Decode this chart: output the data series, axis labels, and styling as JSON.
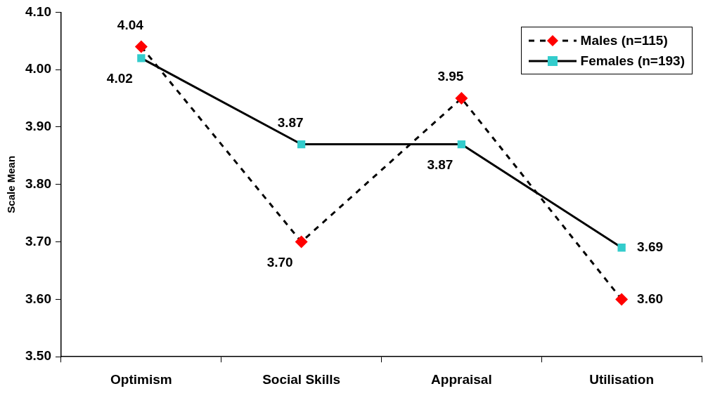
{
  "chart_data": {
    "type": "line",
    "ylabel": "Scale Mean",
    "categories": [
      "Optimism",
      "Social Skills",
      "Appraisal",
      "Utilisation"
    ],
    "series": [
      {
        "name": "Males (n=115)",
        "color": "#ff0000",
        "values": [
          4.04,
          3.7,
          3.95,
          3.6
        ],
        "value_labels": [
          "4.04",
          "3.70",
          "3.95",
          "3.60"
        ],
        "marker": "diamond",
        "line_style": "dashed"
      },
      {
        "name": "Females (n=193)",
        "color": "#33cccc",
        "values": [
          4.02,
          3.87,
          3.87,
          3.69
        ],
        "value_labels": [
          "4.02",
          "3.87",
          "3.87",
          "3.69"
        ],
        "marker": "square",
        "line_style": "solid"
      }
    ],
    "ylim": [
      3.5,
      4.1
    ],
    "yticks": [
      {
        "value": 3.5,
        "label": "3.50"
      },
      {
        "value": 3.6,
        "label": "3.60"
      },
      {
        "value": 3.7,
        "label": "3.70"
      },
      {
        "value": 3.8,
        "label": "3.80"
      },
      {
        "value": 3.9,
        "label": "3.90"
      },
      {
        "value": 4.0,
        "label": "4.00"
      },
      {
        "value": 4.1,
        "label": "4.10"
      }
    ],
    "grid": false,
    "legend": "top right"
  }
}
